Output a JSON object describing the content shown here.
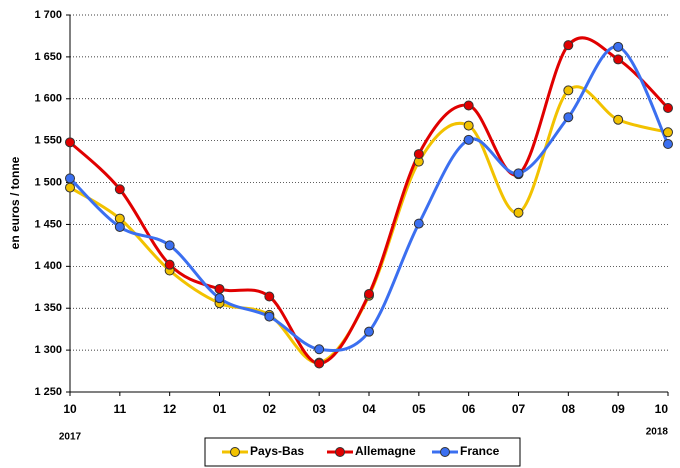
{
  "chart_data": {
    "type": "line",
    "y_label": "en euros / tonne",
    "categories": [
      "10",
      "11",
      "12",
      "01",
      "02",
      "03",
      "04",
      "05",
      "06",
      "07",
      "08",
      "09",
      "10"
    ],
    "year_labels": [
      "2017",
      "2018"
    ],
    "series": [
      {
        "name": "Pays-Bas",
        "color": "#f2c200",
        "values": [
          1494,
          1457,
          1395,
          1356,
          1342,
          1285,
          1365,
          1525,
          1568,
          1464,
          1610,
          1575,
          1560
        ]
      },
      {
        "name": "Allemagne",
        "color": "#e00000",
        "values": [
          1548,
          1492,
          1402,
          1373,
          1364,
          1284,
          1367,
          1534,
          1592,
          1510,
          1664,
          1647,
          1589
        ]
      },
      {
        "name": "France",
        "color": "#3b6ff0",
        "values": [
          1505,
          1447,
          1425,
          1362,
          1340,
          1301,
          1322,
          1451,
          1551,
          1511,
          1578,
          1662,
          1546
        ]
      }
    ],
    "ylim": [
      1250,
      1700
    ],
    "yticks": [
      {
        "value": 1250,
        "label": "1 250"
      },
      {
        "value": 1300,
        "label": "1 300"
      },
      {
        "value": 1350,
        "label": "1 350"
      },
      {
        "value": 1400,
        "label": "1 400"
      },
      {
        "value": 1450,
        "label": "1 450"
      },
      {
        "value": 1500,
        "label": "1 500"
      },
      {
        "value": 1550,
        "label": "1 550"
      },
      {
        "value": 1600,
        "label": "1 600"
      },
      {
        "value": 1650,
        "label": "1 650"
      },
      {
        "value": 1700,
        "label": "1 700"
      }
    ],
    "grid": true
  }
}
